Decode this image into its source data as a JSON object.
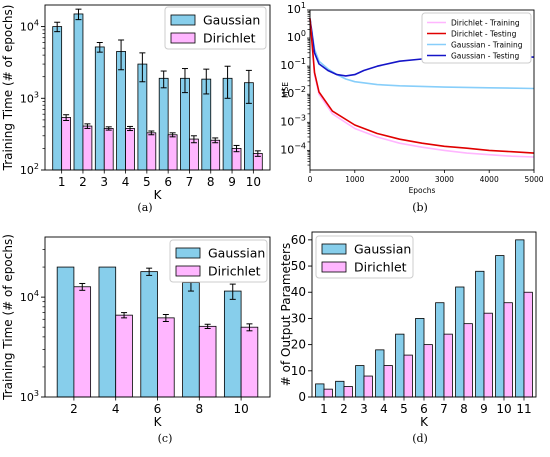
{
  "colors": {
    "gaussian": "#87CEEB",
    "dirichlet": "#FFB6FF",
    "dir_train": "#FFB6FF",
    "dir_test": "#E00000",
    "gau_train": "#87CEFA",
    "gau_test": "#1515C8"
  },
  "captions": {
    "a": "(a)",
    "b": "(b)",
    "c": "(c)",
    "d": "(d)"
  },
  "chart_data": [
    {
      "id": "a",
      "type": "bar",
      "ylabel": "Training Time (# of epochs)",
      "xlabel": "K",
      "yscale": "log",
      "ylim": [
        100,
        20000
      ],
      "yticks": [
        {
          "v": 100,
          "base": "10",
          "exp": "2"
        },
        {
          "v": 1000,
          "base": "10",
          "exp": "3"
        },
        {
          "v": 10000,
          "base": "10",
          "exp": "4"
        }
      ],
      "categories": [
        "1",
        "2",
        "3",
        "4",
        "5",
        "6",
        "7",
        "8",
        "9",
        "10"
      ],
      "legend": "upper right",
      "series": [
        {
          "name": "Gaussian",
          "values": [
            10000,
            15000,
            5200,
            4500,
            3000,
            1900,
            1900,
            1850,
            1900,
            1650
          ],
          "err": [
            1500,
            2500,
            800,
            2000,
            1300,
            500,
            700,
            700,
            900,
            800
          ]
        },
        {
          "name": "Dirichlet",
          "values": [
            540,
            410,
            380,
            380,
            330,
            310,
            270,
            260,
            200,
            170
          ],
          "err": [
            50,
            30,
            20,
            25,
            20,
            20,
            30,
            20,
            20,
            15
          ]
        }
      ]
    },
    {
      "id": "b",
      "type": "line",
      "ylabel": "MSE",
      "xlabel": "Epochs",
      "yscale": "log",
      "ylim": [
        2e-05,
        10
      ],
      "xlim": [
        0,
        5000
      ],
      "xticks": [
        "0",
        "1000",
        "2000",
        "3000",
        "4000",
        "5000"
      ],
      "yticks": [
        {
          "v": 0.0001,
          "base": "10",
          "exp": "−4"
        },
        {
          "v": 0.001,
          "base": "10",
          "exp": "−3"
        },
        {
          "v": 0.01,
          "base": "10",
          "exp": "−2"
        },
        {
          "v": 0.1,
          "base": "10",
          "exp": "−1"
        },
        {
          "v": 1,
          "base": "10",
          "exp": "0"
        },
        {
          "v": 10,
          "base": "10",
          "exp": "1"
        }
      ],
      "legend": "upper right",
      "series": [
        {
          "name": "Dirichlet - Training",
          "x": [
            0,
            100,
            200,
            500,
            1000,
            1500,
            2000,
            2500,
            3000,
            3500,
            4000,
            4500,
            5000
          ],
          "y": [
            5,
            0.05,
            0.01,
            0.002,
            0.0006,
            0.0003,
            0.00018,
            0.00013,
            0.0001,
            8e-05,
            7e-05,
            6.2e-05,
            5.8e-05
          ]
        },
        {
          "name": "Dirichlet - Testing",
          "x": [
            0,
            100,
            200,
            500,
            1000,
            1500,
            2000,
            2500,
            3000,
            3500,
            4000,
            4500,
            5000
          ],
          "y": [
            5,
            0.06,
            0.012,
            0.0025,
            0.0008,
            0.0004,
            0.00025,
            0.00018,
            0.00014,
            0.00012,
            0.0001,
            9e-05,
            8e-05
          ]
        },
        {
          "name": "Gaussian - Training",
          "x": [
            0,
            100,
            200,
            400,
            600,
            800,
            1000,
            1500,
            2000,
            3000,
            4000,
            5000
          ],
          "y": [
            5,
            0.4,
            0.15,
            0.08,
            0.05,
            0.035,
            0.028,
            0.022,
            0.02,
            0.018,
            0.017,
            0.016
          ]
        },
        {
          "name": "Gaussian - Testing",
          "x": [
            0,
            100,
            200,
            400,
            600,
            800,
            1000,
            1200,
            1500,
            2000,
            2500,
            3000,
            4000,
            5000
          ],
          "y": [
            5,
            0.3,
            0.12,
            0.07,
            0.05,
            0.045,
            0.05,
            0.07,
            0.1,
            0.15,
            0.18,
            0.2,
            0.21,
            0.21
          ]
        }
      ]
    },
    {
      "id": "c",
      "type": "bar",
      "ylabel": "Training Time (# of epochs)",
      "xlabel": "K",
      "yscale": "log",
      "ylim": [
        1000,
        40000
      ],
      "yticks": [
        {
          "v": 1000,
          "base": "10",
          "exp": "3"
        },
        {
          "v": 10000,
          "base": "10",
          "exp": "4"
        }
      ],
      "categories": [
        "2",
        "4",
        "6",
        "8",
        "10"
      ],
      "legend": "upper right",
      "series": [
        {
          "name": "Gaussian",
          "values": [
            20000,
            20000,
            18000,
            14000,
            11500
          ],
          "err": [
            0,
            0,
            1500,
            2500,
            2000
          ]
        },
        {
          "name": "Dirichlet",
          "values": [
            12700,
            6600,
            6200,
            5100,
            5000
          ],
          "err": [
            1000,
            400,
            500,
            250,
            400
          ]
        }
      ]
    },
    {
      "id": "d",
      "type": "bar",
      "ylabel": "# of Output Parameters",
      "xlabel": "K",
      "yscale": "linear",
      "ylim": [
        0,
        63
      ],
      "yticks": [
        {
          "v": 0,
          "label": "0"
        },
        {
          "v": 10,
          "label": "10"
        },
        {
          "v": 20,
          "label": "20"
        },
        {
          "v": 30,
          "label": "30"
        },
        {
          "v": 40,
          "label": "40"
        },
        {
          "v": 50,
          "label": "50"
        },
        {
          "v": 60,
          "label": "60"
        }
      ],
      "categories": [
        "1",
        "2",
        "3",
        "4",
        "5",
        "6",
        "7",
        "8",
        "9",
        "10",
        "11"
      ],
      "legend": "upper left",
      "series": [
        {
          "name": "Gaussian",
          "values": [
            5,
            6,
            12,
            18,
            24,
            30,
            36,
            42,
            48,
            54,
            60
          ]
        },
        {
          "name": "Dirichlet",
          "values": [
            3,
            4,
            8,
            12,
            16,
            20,
            24,
            28,
            32,
            36,
            40
          ]
        }
      ]
    }
  ]
}
